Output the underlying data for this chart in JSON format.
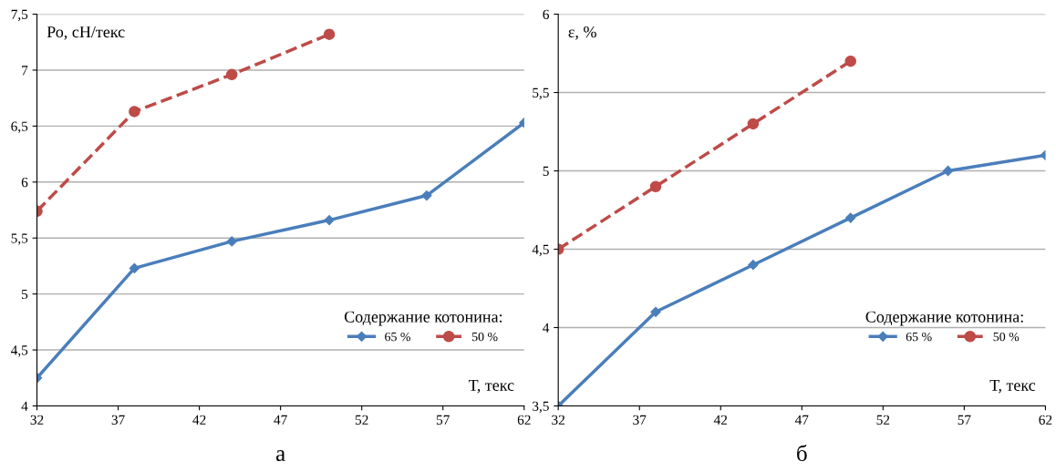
{
  "chart_data": [
    {
      "type": "line",
      "ylabel": "Ро, сН/текс",
      "xlabel": "Т, текс",
      "legend_title": "Содержание котонина:",
      "annotations": [
        "а"
      ],
      "x": [
        32,
        38,
        44,
        50,
        56,
        62
      ],
      "xlim": [
        32,
        62
      ],
      "xticks": [
        32,
        37,
        42,
        47,
        52,
        57,
        62
      ],
      "ylim": [
        4,
        7.5
      ],
      "yticks": [
        4,
        {
          "value": 4.5,
          "label": "4,5"
        },
        5,
        {
          "value": 5.5,
          "label": "5,5"
        },
        6,
        {
          "value": 6.5,
          "label": "6,5"
        },
        7,
        {
          "value": 7.5,
          "label": "7,5"
        }
      ],
      "grid": "y",
      "legend": "bottom right",
      "series": [
        {
          "name": "65 %",
          "color": "#4a7ebb",
          "marker": "diamond",
          "line_style": "solid",
          "values": [
            4.25,
            5.23,
            5.47,
            5.66,
            5.88,
            6.53
          ]
        },
        {
          "name": "50 %",
          "color": "#be4b48",
          "marker": "circle",
          "line_style": "dashed",
          "values": [
            5.74,
            6.63,
            6.96,
            7.32,
            null,
            null
          ]
        }
      ]
    },
    {
      "type": "line",
      "ylabel": "ε, %",
      "xlabel": "Т, текс",
      "legend_title": "Содержание котонина:",
      "annotations": [
        "б"
      ],
      "x": [
        32,
        38,
        44,
        50,
        56,
        62
      ],
      "xlim": [
        32,
        62
      ],
      "xticks": [
        32,
        37,
        42,
        47,
        52,
        57,
        62
      ],
      "ylim": [
        3.5,
        6
      ],
      "yticks": [
        {
          "value": 3.5,
          "label": "3,5"
        },
        4,
        {
          "value": 4.5,
          "label": "4,5"
        },
        5,
        {
          "value": 5.5,
          "label": "5,5"
        },
        6
      ],
      "grid": "y",
      "legend": "bottom right",
      "series": [
        {
          "name": "65 %",
          "color": "#4a7ebb",
          "marker": "diamond",
          "line_style": "solid",
          "values": [
            3.5,
            4.1,
            4.4,
            4.7,
            5.0,
            5.1
          ]
        },
        {
          "name": "50 %",
          "color": "#be4b48",
          "marker": "circle",
          "line_style": "dashed",
          "values": [
            4.5,
            4.9,
            5.3,
            5.7,
            null,
            null
          ]
        }
      ]
    }
  ]
}
